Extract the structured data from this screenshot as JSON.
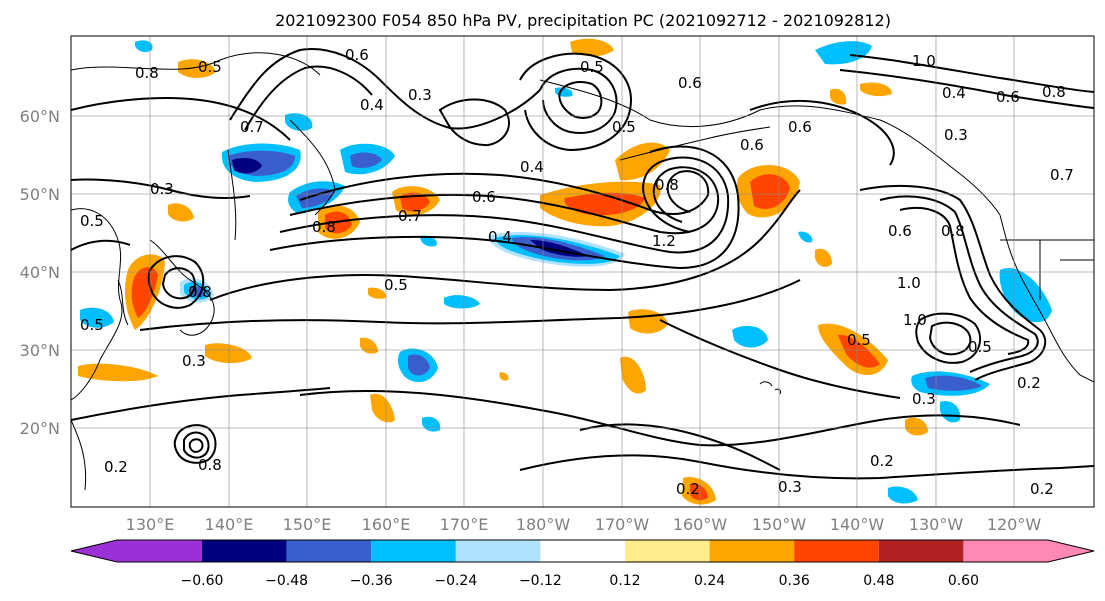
{
  "title": "2021092300 F054 850 hPa PV, precipitation PC (2021092712 - 2021092812)",
  "lat_labels": [
    "60°N",
    "50°N",
    "40°N",
    "30°N",
    "20°N"
  ],
  "lon_labels": [
    "130°E",
    "140°E",
    "150°E",
    "160°E",
    "170°E",
    "180°W",
    "170°W",
    "160°W",
    "150°W",
    "140°W",
    "130°W",
    "120°W"
  ],
  "colorbar": {
    "colors": [
      "#9b30d6",
      "#000080",
      "#3a5fcd",
      "#00bfff",
      "#b0e2ff",
      "#ffffff",
      "#ffec8b",
      "#ffa500",
      "#ff4500",
      "#b22222",
      "#ff88b4"
    ],
    "tick_labels": [
      "−0.60",
      "−0.48",
      "−0.36",
      "−0.24",
      "−0.12",
      "0.12",
      "0.24",
      "0.36",
      "0.48",
      "0.60"
    ]
  },
  "contour_labels": [
    "0.8",
    "0.5",
    "0.6",
    "0.3",
    "0.7",
    "0.4",
    "0.5",
    "0.6",
    "0.8",
    "1.0",
    "0.4",
    "0.6",
    "0.8",
    "0.3",
    "0.3",
    "0.6",
    "0.4",
    "0.8",
    "0.7",
    "0.5",
    "0.6",
    "1.2",
    "0.8",
    "0.5",
    "0.5",
    "0.8",
    "0.6",
    "0.5",
    "0.5",
    "0.3",
    "0.5",
    "0.4",
    "1.0",
    "1.0",
    "0.2",
    "0.3",
    "0.2",
    "0.2",
    "0.3",
    "0.2",
    "0.2",
    "0.8",
    "0.6",
    "0.7"
  ]
}
